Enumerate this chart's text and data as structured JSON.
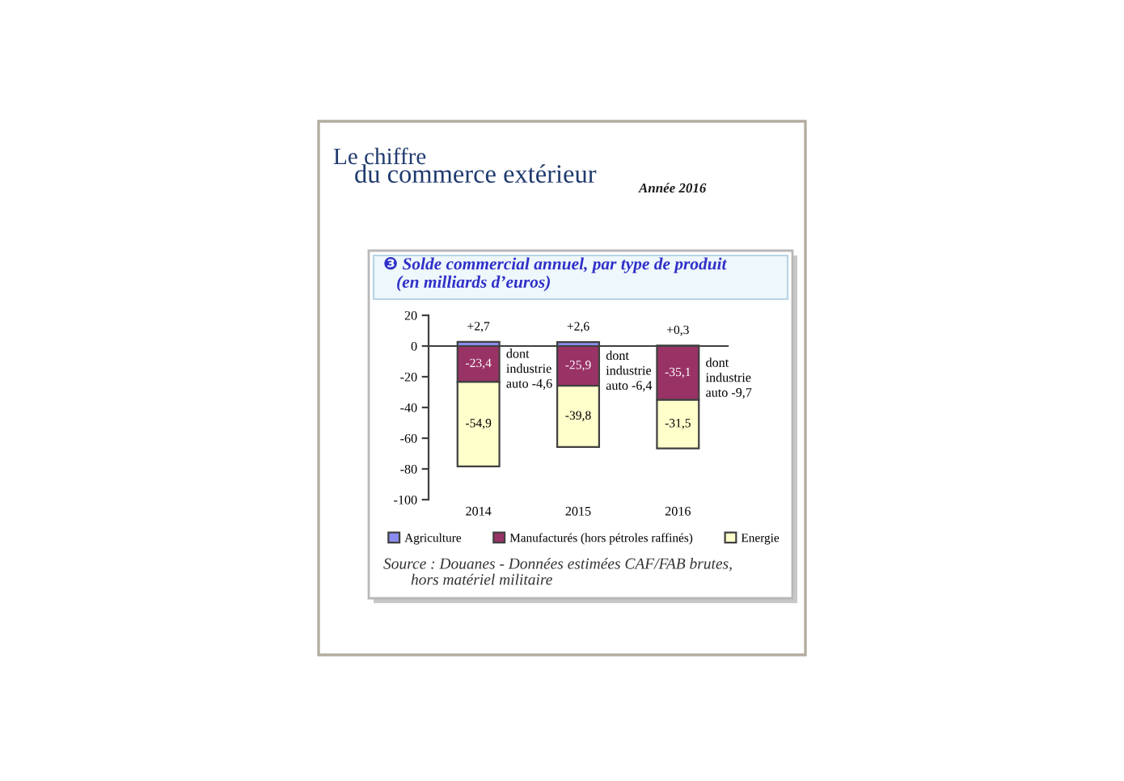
{
  "chart_data": {
    "type": "bar",
    "stacked": true,
    "title": "❸ Solde commercial annuel, par type de produit\n   (en milliards d’euros)",
    "categories": [
      "2014",
      "2015",
      "2016"
    ],
    "series": [
      {
        "name": "Agriculture",
        "color": "#8c8cf0",
        "values": [
          2.7,
          2.6,
          0.3
        ],
        "value_labels": [
          "+2,7",
          "+2,6",
          "+0,3"
        ]
      },
      {
        "name": "Manufacturés (hors pétroles raffinés)",
        "color": "#993366",
        "values": [
          -23.4,
          -25.9,
          -35.1
        ],
        "value_labels": [
          "-23,4",
          "-25,9",
          "-35,1"
        ]
      },
      {
        "name": "Energie",
        "color": "#ffffcc",
        "values": [
          -54.9,
          -39.8,
          -31.5
        ],
        "value_labels": [
          "-54,9",
          "-39,8",
          "-31,5"
        ]
      }
    ],
    "ylim": [
      -100,
      20
    ],
    "yticks": [
      -100,
      -80,
      -60,
      -40,
      -20,
      0,
      20
    ],
    "legend": "bottom",
    "annotations": [
      "Le chiffre",
      "du commerce extérieur",
      "Année 2016",
      {
        "text": "dont\nindustrie\nauto -4,6",
        "x": "2014",
        "y": -23.4
      },
      {
        "text": "dont\nindustrie\nauto -6,4",
        "x": "2015",
        "y": -25.9
      },
      {
        "text": "dont\nindustrie\nauto -9,7",
        "x": "2016",
        "y": -35.1
      },
      "Source : Douanes - Données estimées CAF/FAB brutes,\n       hors matériel militaire"
    ]
  }
}
